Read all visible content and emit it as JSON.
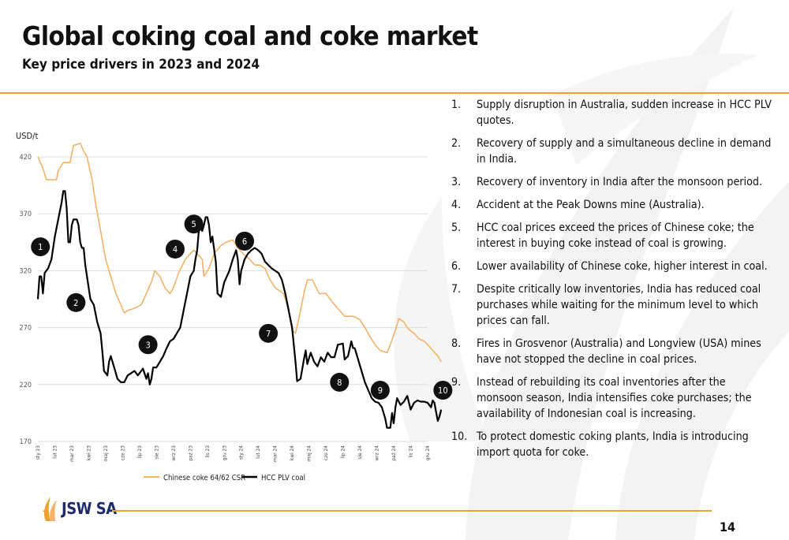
{
  "header": {
    "title": "Global coking coal and coke market",
    "subtitle": "Key price drivers in 2023 and 2024"
  },
  "colors": {
    "accent": "#f0a030",
    "coke_line": "#f5b266",
    "coal_line": "#000000",
    "logo_blue": "#1e2b6b"
  },
  "chart_data": {
    "type": "line",
    "ylabel": "USD/t",
    "ylim": [
      170,
      420
    ],
    "yticks": [
      170,
      220,
      270,
      320,
      370,
      420
    ],
    "grid": true,
    "legend_position": "bottom",
    "categories": [
      "sty 23",
      "lut 23",
      "mar 23",
      "kwi 23",
      "maj 23",
      "cze 23",
      "lip 23",
      "sie 23",
      "wrz 23",
      "paź 23",
      "lis 23",
      "gru 23",
      "sty 24",
      "lut 24",
      "mar 24",
      "kwi 24",
      "maj 24",
      "cze 24",
      "lip 24",
      "sie 24",
      "wrz 24",
      "paź 24",
      "lis 24",
      "gru 24"
    ],
    "series": [
      {
        "name": "Chinese coke 64/62 CSR",
        "color": "#f5b266",
        "points": [
          [
            0,
            420
          ],
          [
            0.3,
            410
          ],
          [
            0.5,
            400
          ],
          [
            1.1,
            400
          ],
          [
            1.2,
            408
          ],
          [
            1.5,
            415
          ],
          [
            1.9,
            415
          ],
          [
            2.1,
            430
          ],
          [
            2.5,
            432
          ],
          [
            2.7,
            425
          ],
          [
            2.9,
            420
          ],
          [
            3.2,
            400
          ],
          [
            3.4,
            380
          ],
          [
            3.7,
            355
          ],
          [
            4.0,
            330
          ],
          [
            4.3,
            315
          ],
          [
            4.6,
            300
          ],
          [
            4.9,
            290
          ],
          [
            5.1,
            283
          ],
          [
            5.3,
            285
          ],
          [
            5.7,
            287
          ],
          [
            6.1,
            290
          ],
          [
            6.4,
            300
          ],
          [
            6.7,
            310
          ],
          [
            6.9,
            320
          ],
          [
            7.2,
            315
          ],
          [
            7.5,
            305
          ],
          [
            7.8,
            300
          ],
          [
            8.0,
            305
          ],
          [
            8.3,
            318
          ],
          [
            8.7,
            330
          ],
          [
            9.0,
            335
          ],
          [
            9.2,
            338
          ],
          [
            9.4,
            335
          ],
          [
            9.7,
            330
          ],
          [
            9.8,
            315
          ],
          [
            10.1,
            322
          ],
          [
            10.4,
            335
          ],
          [
            10.8,
            342
          ],
          [
            11.1,
            345
          ],
          [
            11.5,
            347
          ],
          [
            11.8,
            340
          ],
          [
            12.1,
            335
          ],
          [
            12.5,
            330
          ],
          [
            12.8,
            325
          ],
          [
            13.1,
            325
          ],
          [
            13.4,
            322
          ],
          [
            13.7,
            312
          ],
          [
            14.0,
            305
          ],
          [
            14.3,
            302
          ],
          [
            14.5,
            300
          ],
          [
            14.8,
            285
          ],
          [
            15.0,
            268
          ],
          [
            15.2,
            265
          ],
          [
            15.4,
            278
          ],
          [
            15.7,
            300
          ],
          [
            15.9,
            312
          ],
          [
            16.2,
            312
          ],
          [
            16.6,
            300
          ],
          [
            17.0,
            300
          ],
          [
            17.4,
            292
          ],
          [
            17.8,
            285
          ],
          [
            18.1,
            280
          ],
          [
            18.6,
            280
          ],
          [
            19.0,
            277
          ],
          [
            19.3,
            270
          ],
          [
            19.6,
            262
          ],
          [
            19.9,
            255
          ],
          [
            20.2,
            250
          ],
          [
            20.6,
            248
          ],
          [
            20.8,
            255
          ],
          [
            21.1,
            268
          ],
          [
            21.3,
            278
          ],
          [
            21.6,
            275
          ],
          [
            21.8,
            270
          ],
          [
            22.0,
            267
          ],
          [
            22.2,
            265
          ],
          [
            22.5,
            260
          ],
          [
            22.8,
            258
          ],
          [
            23.0,
            255
          ],
          [
            23.3,
            250
          ],
          [
            23.6,
            245
          ],
          [
            23.8,
            240
          ]
        ]
      },
      {
        "name": "HCC PLV coal",
        "color": "#000000",
        "points": [
          [
            0,
            295
          ],
          [
            0.1,
            315
          ],
          [
            0.2,
            315
          ],
          [
            0.3,
            300
          ],
          [
            0.4,
            318
          ],
          [
            0.6,
            322
          ],
          [
            0.8,
            330
          ],
          [
            1.0,
            350
          ],
          [
            1.2,
            365
          ],
          [
            1.4,
            380
          ],
          [
            1.5,
            390
          ],
          [
            1.6,
            390
          ],
          [
            1.7,
            375
          ],
          [
            1.8,
            345
          ],
          [
            1.9,
            345
          ],
          [
            2.0,
            360
          ],
          [
            2.1,
            365
          ],
          [
            2.3,
            365
          ],
          [
            2.4,
            360
          ],
          [
            2.5,
            345
          ],
          [
            2.6,
            340
          ],
          [
            2.7,
            340
          ],
          [
            2.8,
            325
          ],
          [
            3.0,
            305
          ],
          [
            3.1,
            295
          ],
          [
            3.3,
            290
          ],
          [
            3.5,
            275
          ],
          [
            3.7,
            265
          ],
          [
            3.8,
            250
          ],
          [
            3.9,
            232
          ],
          [
            4.1,
            228
          ],
          [
            4.2,
            240
          ],
          [
            4.3,
            245
          ],
          [
            4.5,
            235
          ],
          [
            4.7,
            225
          ],
          [
            4.9,
            222
          ],
          [
            5.1,
            222
          ],
          [
            5.3,
            228
          ],
          [
            5.5,
            230
          ],
          [
            5.7,
            232
          ],
          [
            5.9,
            228
          ],
          [
            6.1,
            232
          ],
          [
            6.2,
            234
          ],
          [
            6.4,
            225
          ],
          [
            6.5,
            230
          ],
          [
            6.6,
            220
          ],
          [
            6.7,
            225
          ],
          [
            6.8,
            235
          ],
          [
            7.0,
            235
          ],
          [
            7.2,
            240
          ],
          [
            7.4,
            245
          ],
          [
            7.6,
            252
          ],
          [
            7.8,
            258
          ],
          [
            8.0,
            260
          ],
          [
            8.2,
            265
          ],
          [
            8.4,
            270
          ],
          [
            8.6,
            285
          ],
          [
            8.8,
            300
          ],
          [
            9.0,
            315
          ],
          [
            9.2,
            320
          ],
          [
            9.3,
            330
          ],
          [
            9.4,
            338
          ],
          [
            9.5,
            355
          ],
          [
            9.6,
            360
          ],
          [
            9.7,
            355
          ],
          [
            9.8,
            360
          ],
          [
            9.9,
            367
          ],
          [
            10.0,
            367
          ],
          [
            10.1,
            360
          ],
          [
            10.2,
            345
          ],
          [
            10.3,
            350
          ],
          [
            10.5,
            328
          ],
          [
            10.6,
            300
          ],
          [
            10.8,
            297
          ],
          [
            11.0,
            310
          ],
          [
            11.3,
            320
          ],
          [
            11.5,
            330
          ],
          [
            11.7,
            338
          ],
          [
            11.8,
            330
          ],
          [
            11.9,
            308
          ],
          [
            12.0,
            320
          ],
          [
            12.2,
            330
          ],
          [
            12.4,
            335
          ],
          [
            12.6,
            338
          ],
          [
            12.8,
            340
          ],
          [
            13.0,
            338
          ],
          [
            13.2,
            335
          ],
          [
            13.4,
            328
          ],
          [
            13.6,
            325
          ],
          [
            13.8,
            322
          ],
          [
            14.0,
            320
          ],
          [
            14.2,
            318
          ],
          [
            14.4,
            312
          ],
          [
            14.6,
            300
          ],
          [
            14.8,
            285
          ],
          [
            15.0,
            270
          ],
          [
            15.2,
            240
          ],
          [
            15.3,
            223
          ],
          [
            15.5,
            225
          ],
          [
            15.7,
            242
          ],
          [
            15.8,
            250
          ],
          [
            15.9,
            238
          ],
          [
            16.1,
            248
          ],
          [
            16.3,
            240
          ],
          [
            16.5,
            236
          ],
          [
            16.7,
            244
          ],
          [
            16.9,
            240
          ],
          [
            17.1,
            248
          ],
          [
            17.3,
            244
          ],
          [
            17.5,
            244
          ],
          [
            17.7,
            255
          ],
          [
            18.0,
            256
          ],
          [
            18.1,
            242
          ],
          [
            18.3,
            245
          ],
          [
            18.5,
            258
          ],
          [
            18.6,
            252
          ],
          [
            18.7,
            252
          ],
          [
            18.9,
            242
          ],
          [
            19.1,
            232
          ],
          [
            19.3,
            222
          ],
          [
            19.5,
            215
          ],
          [
            19.7,
            208
          ],
          [
            19.9,
            205
          ],
          [
            20.1,
            204
          ],
          [
            20.3,
            200
          ],
          [
            20.5,
            190
          ],
          [
            20.6,
            182
          ],
          [
            20.8,
            182
          ],
          [
            20.9,
            195
          ],
          [
            21.0,
            186
          ],
          [
            21.1,
            200
          ],
          [
            21.2,
            208
          ],
          [
            21.4,
            202
          ],
          [
            21.6,
            205
          ],
          [
            21.8,
            210
          ],
          [
            22.0,
            198
          ],
          [
            22.2,
            204
          ],
          [
            22.4,
            206
          ],
          [
            22.6,
            205
          ],
          [
            22.8,
            205
          ],
          [
            23.0,
            204
          ],
          [
            23.2,
            200
          ],
          [
            23.3,
            206
          ],
          [
            23.4,
            204
          ],
          [
            23.5,
            196
          ],
          [
            23.6,
            188
          ],
          [
            23.7,
            192
          ],
          [
            23.8,
            198
          ]
        ]
      }
    ],
    "annotations": [
      {
        "label": "1",
        "x": 0.15,
        "y": 341
      },
      {
        "label": "2",
        "x": 2.25,
        "y": 292
      },
      {
        "label": "3",
        "x": 6.5,
        "y": 255
      },
      {
        "label": "4",
        "x": 8.1,
        "y": 339
      },
      {
        "label": "5",
        "x": 9.2,
        "y": 361
      },
      {
        "label": "6",
        "x": 12.2,
        "y": 346
      },
      {
        "label": "7",
        "x": 13.6,
        "y": 265
      },
      {
        "label": "8",
        "x": 17.8,
        "y": 222
      },
      {
        "label": "9",
        "x": 20.2,
        "y": 215
      },
      {
        "label": "10",
        "x": 23.9,
        "y": 215
      }
    ]
  },
  "notes": [
    {
      "num": "1.",
      "text": "Supply disruption in Australia, sudden increase in HCC PLV quotes."
    },
    {
      "num": "2.",
      "text": "Recovery of supply and a simultaneous decline in demand in India."
    },
    {
      "num": "3.",
      "text": "Recovery of inventory in India after the monsoon period."
    },
    {
      "num": "4.",
      "text": "Accident at the Peak Downs mine (Australia)."
    },
    {
      "num": "5.",
      "text": "HCC coal prices exceed the prices of Chinese coke; the interest in buying coke instead of coal is growing."
    },
    {
      "num": "6.",
      "text": "Lower availability of Chinese coke, higher interest in coal."
    },
    {
      "num": "7.",
      "text": "Despite critically low inventories, India has reduced coal purchases while waiting for the minimum level to which prices can fall."
    },
    {
      "num": "8.",
      "text": "Fires in Grosvenor (Australia) and Longview (USA) mines have not stopped the decline in coal prices."
    },
    {
      "num": "9.",
      "text": "Instead of rebuilding its coal inventories after the monsoon season, India intensifies coke purchases; the availability of Indonesian coal is increasing."
    },
    {
      "num": "10.",
      "text": "To protect domestic coking plants, India is introducing import quota for coke."
    }
  ],
  "footer": {
    "logo_text": "JSW SA",
    "page_number": "14"
  }
}
